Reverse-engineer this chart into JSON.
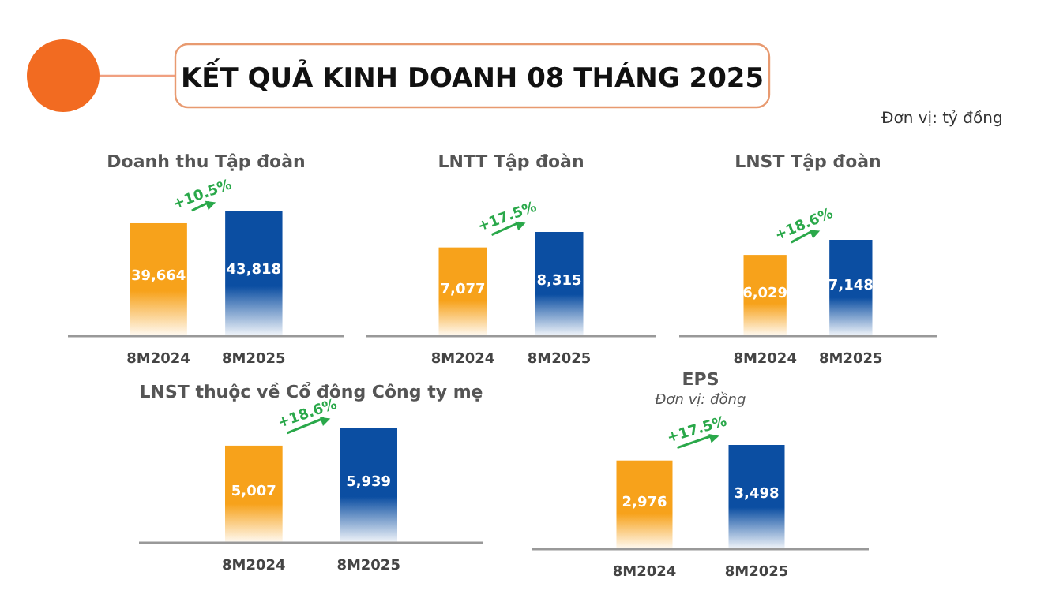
{
  "chart_data": [
    {
      "type": "other",
      "title": "KẾT QUẢ KINH DOANH 08 THÁNG 2025",
      "annotations": [
        "Đơn vị: tỷ đồng"
      ]
    },
    {
      "type": "bar",
      "title": "Doanh thu Tập đoàn",
      "categories": [
        "8M2024",
        "8M2025"
      ],
      "values": [
        39664,
        43818
      ],
      "value_labels": [
        "39,664",
        "43,818"
      ],
      "colors": [
        "#f7a21b",
        "#0b4ea2"
      ],
      "annotations": [
        "+10.5%"
      ]
    },
    {
      "type": "bar",
      "title": "LNTT Tập đoàn",
      "categories": [
        "8M2024",
        "8M2025"
      ],
      "values": [
        7077,
        8315
      ],
      "value_labels": [
        "7,077",
        "8,315"
      ],
      "colors": [
        "#f7a21b",
        "#0b4ea2"
      ],
      "annotations": [
        "+17.5%"
      ]
    },
    {
      "type": "bar",
      "title": "LNST Tập đoàn",
      "categories": [
        "8M2024",
        "8M2025"
      ],
      "values": [
        6029,
        7148
      ],
      "value_labels": [
        "6,029",
        "7,148"
      ],
      "colors": [
        "#f7a21b",
        "#0b4ea2"
      ],
      "annotations": [
        "+18.6%"
      ]
    },
    {
      "type": "bar",
      "title": "LNST thuộc về Cổ đông Công ty mẹ",
      "categories": [
        "8M2024",
        "8M2025"
      ],
      "values": [
        5007,
        5939
      ],
      "value_labels": [
        "5,007",
        "5,939"
      ],
      "colors": [
        "#f7a21b",
        "#0b4ea2"
      ],
      "annotations": [
        "+18.6%"
      ]
    },
    {
      "type": "bar",
      "title": "EPS",
      "subtitle": "Đơn vị: đồng",
      "categories": [
        "8M2024",
        "8M2025"
      ],
      "values": [
        2976,
        3498
      ],
      "value_labels": [
        "2,976",
        "3,498"
      ],
      "colors": [
        "#f7a21b",
        "#0b4ea2"
      ],
      "annotations": [
        "+17.5%"
      ]
    }
  ]
}
